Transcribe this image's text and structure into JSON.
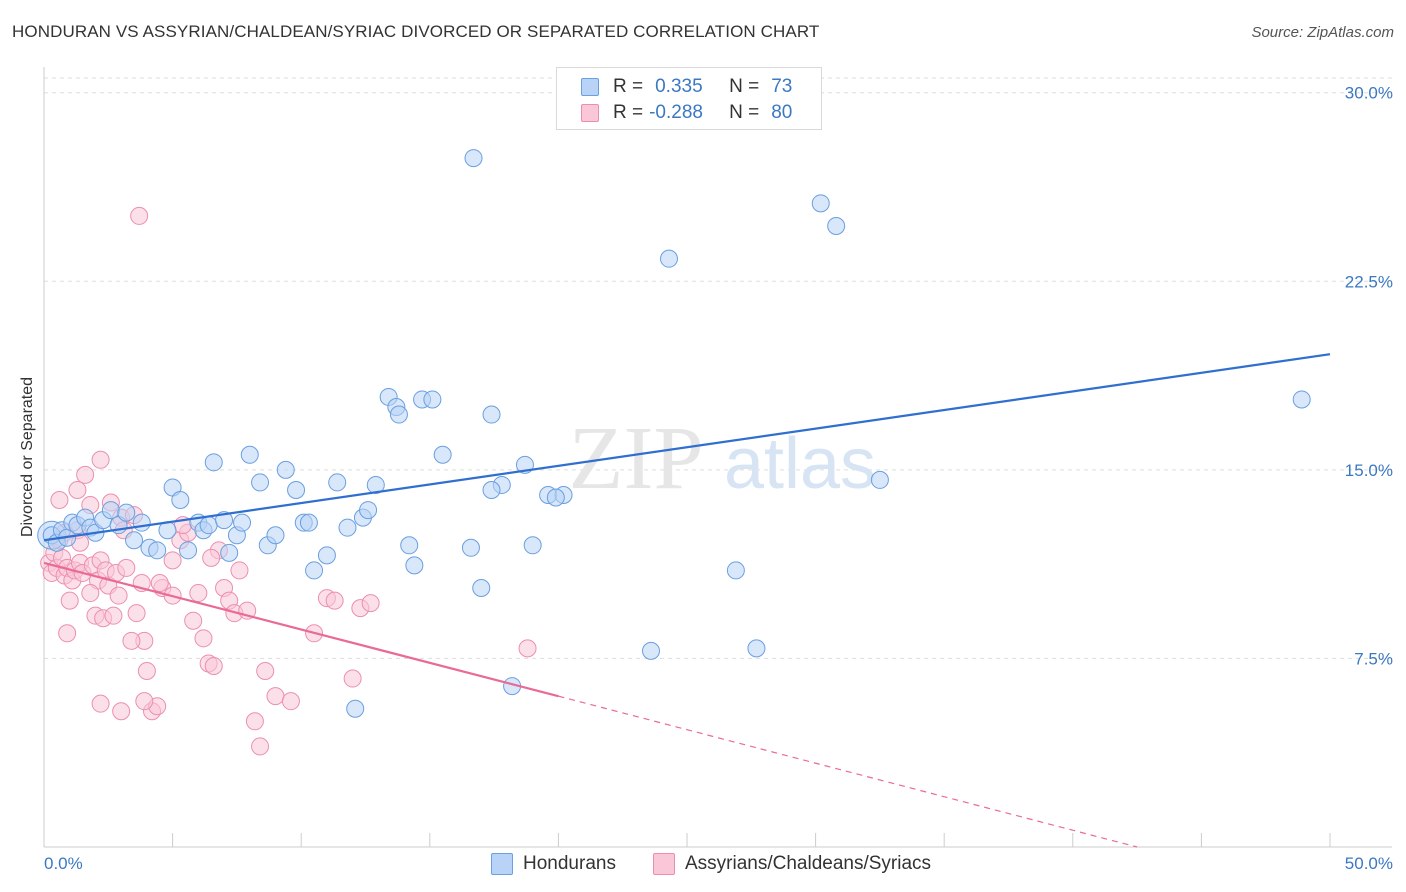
{
  "title": "HONDURAN VS ASSYRIAN/CHALDEAN/SYRIAC DIVORCED OR SEPARATED CORRELATION CHART",
  "source": "Source: ZipAtlas.com",
  "watermark": {
    "zip": "ZIP",
    "atlas": "atlas"
  },
  "colors": {
    "blue": "#3b78c2",
    "blue_point_fill": "#b8d3f5",
    "blue_line": "#2f6fcf",
    "pink_point_fill": "#f9c7d7",
    "pink_line": "#e96b94",
    "grid": "#dddddd"
  },
  "legend": {
    "rows": [
      {
        "r_label": "R =",
        "r_value": "0.335",
        "n_label": "N =",
        "n_value": "73"
      },
      {
        "r_label": "R =",
        "r_value": "-0.288",
        "n_label": "N =",
        "n_value": "80"
      }
    ]
  },
  "bottom_legend": {
    "items": [
      {
        "label": "Hondurans"
      },
      {
        "label": "Assyrians/Chaldeans/Syriacs"
      }
    ]
  },
  "chart_data": {
    "type": "scatter",
    "title": "HONDURAN VS ASSYRIAN/CHALDEAN/SYRIAC DIVORCED OR SEPARATED CORRELATION CHART",
    "xlabel": "",
    "ylabel": "Divorced or Separated",
    "xlim": [
      0,
      50
    ],
    "ylim": [
      0,
      31.5
    ],
    "x_tick_labels": [
      "0.0%",
      "50.0%"
    ],
    "y_ticks": [
      7.5,
      15.0,
      22.5,
      30.0
    ],
    "y_tick_labels": [
      "7.5%",
      "15.0%",
      "22.5%",
      "30.0%"
    ],
    "grid": true,
    "legend_position": "top-center",
    "series": [
      {
        "name": "Hondurans",
        "color": "#3b78c2",
        "r": 0.335,
        "n": 73,
        "trend": {
          "x": [
            0.0,
            50.0
          ],
          "y": [
            12.2,
            19.6
          ],
          "dashed_from": null
        },
        "points": [
          [
            0.3,
            12.4
          ],
          [
            0.5,
            12.1
          ],
          [
            0.7,
            12.6
          ],
          [
            0.9,
            12.3
          ],
          [
            1.1,
            12.9
          ],
          [
            1.3,
            12.8
          ],
          [
            1.6,
            13.1
          ],
          [
            1.8,
            12.7
          ],
          [
            2.0,
            12.5
          ],
          [
            2.3,
            13.0
          ],
          [
            2.6,
            13.4
          ],
          [
            2.9,
            12.8
          ],
          [
            3.2,
            13.3
          ],
          [
            3.5,
            12.2
          ],
          [
            3.8,
            12.9
          ],
          [
            4.1,
            11.9
          ],
          [
            4.4,
            11.8
          ],
          [
            4.8,
            12.6
          ],
          [
            5.0,
            14.3
          ],
          [
            5.3,
            13.8
          ],
          [
            5.6,
            11.8
          ],
          [
            6.0,
            12.9
          ],
          [
            6.2,
            12.6
          ],
          [
            6.4,
            12.8
          ],
          [
            6.6,
            15.3
          ],
          [
            7.0,
            13.0
          ],
          [
            7.2,
            11.7
          ],
          [
            7.5,
            12.4
          ],
          [
            7.7,
            12.9
          ],
          [
            8.0,
            15.6
          ],
          [
            8.4,
            14.5
          ],
          [
            8.7,
            12.0
          ],
          [
            9.0,
            12.4
          ],
          [
            9.4,
            15.0
          ],
          [
            9.8,
            14.2
          ],
          [
            10.1,
            12.9
          ],
          [
            10.3,
            12.9
          ],
          [
            10.5,
            11.0
          ],
          [
            11.0,
            11.6
          ],
          [
            11.4,
            14.5
          ],
          [
            11.8,
            12.7
          ],
          [
            12.4,
            13.1
          ],
          [
            12.6,
            13.4
          ],
          [
            12.9,
            14.4
          ],
          [
            13.4,
            17.9
          ],
          [
            13.7,
            17.5
          ],
          [
            14.2,
            12.0
          ],
          [
            14.4,
            11.2
          ],
          [
            14.7,
            17.8
          ],
          [
            15.1,
            17.8
          ],
          [
            15.5,
            15.6
          ],
          [
            16.6,
            11.9
          ],
          [
            17.0,
            10.3
          ],
          [
            17.4,
            17.2
          ],
          [
            17.8,
            14.4
          ],
          [
            17.4,
            14.2
          ],
          [
            16.7,
            27.4
          ],
          [
            18.7,
            15.2
          ],
          [
            19.0,
            12.0
          ],
          [
            19.6,
            14.0
          ],
          [
            18.2,
            6.4
          ],
          [
            12.1,
            5.5
          ],
          [
            20.2,
            14.0
          ],
          [
            23.6,
            7.8
          ],
          [
            24.3,
            23.4
          ],
          [
            26.9,
            11.0
          ],
          [
            27.7,
            7.9
          ],
          [
            30.2,
            25.6
          ],
          [
            30.8,
            24.7
          ],
          [
            32.5,
            14.6
          ],
          [
            48.9,
            17.8
          ],
          [
            13.8,
            17.2
          ],
          [
            19.9,
            13.9
          ]
        ]
      },
      {
        "name": "Assyrians/Chaldeans/Syriacs",
        "color": "#e96b94",
        "r": -0.288,
        "n": 80,
        "trend": {
          "x": [
            0.0,
            20.0,
            50.0
          ],
          "y": [
            11.3,
            6.0,
            -2.0
          ],
          "dashed_from": 20.0
        },
        "points": [
          [
            0.2,
            11.3
          ],
          [
            0.3,
            10.9
          ],
          [
            0.4,
            11.7
          ],
          [
            0.5,
            11.1
          ],
          [
            0.6,
            12.2
          ],
          [
            0.7,
            11.5
          ],
          [
            0.8,
            10.8
          ],
          [
            0.9,
            11.1
          ],
          [
            1.0,
            9.8
          ],
          [
            1.1,
            10.6
          ],
          [
            1.2,
            11.0
          ],
          [
            1.3,
            12.6
          ],
          [
            1.4,
            11.3
          ],
          [
            1.5,
            10.9
          ],
          [
            1.6,
            14.8
          ],
          [
            1.8,
            13.6
          ],
          [
            1.9,
            11.2
          ],
          [
            2.0,
            9.2
          ],
          [
            2.1,
            10.6
          ],
          [
            2.2,
            11.4
          ],
          [
            2.3,
            9.1
          ],
          [
            2.4,
            11.0
          ],
          [
            2.5,
            10.4
          ],
          [
            2.6,
            13.7
          ],
          [
            2.7,
            9.2
          ],
          [
            2.8,
            10.9
          ],
          [
            3.0,
            13.1
          ],
          [
            3.1,
            12.6
          ],
          [
            3.2,
            11.1
          ],
          [
            0.6,
            13.8
          ],
          [
            1.3,
            14.2
          ],
          [
            1.4,
            12.1
          ],
          [
            0.8,
            12.5
          ],
          [
            2.2,
            15.4
          ],
          [
            3.5,
            13.2
          ],
          [
            3.6,
            9.3
          ],
          [
            3.8,
            10.5
          ],
          [
            3.9,
            8.2
          ],
          [
            4.0,
            7.0
          ],
          [
            4.2,
            5.4
          ],
          [
            4.4,
            5.6
          ],
          [
            3.0,
            5.4
          ],
          [
            2.2,
            5.7
          ],
          [
            3.4,
            8.2
          ],
          [
            4.6,
            10.3
          ],
          [
            5.0,
            11.4
          ],
          [
            5.3,
            12.2
          ],
          [
            5.6,
            12.5
          ],
          [
            5.8,
            9.0
          ],
          [
            6.0,
            10.1
          ],
          [
            6.2,
            8.3
          ],
          [
            6.4,
            7.3
          ],
          [
            6.6,
            7.2
          ],
          [
            6.8,
            11.8
          ],
          [
            7.0,
            10.3
          ],
          [
            7.2,
            9.8
          ],
          [
            7.4,
            9.3
          ],
          [
            7.6,
            11.0
          ],
          [
            7.9,
            9.4
          ],
          [
            8.2,
            5.0
          ],
          [
            8.4,
            4.0
          ],
          [
            8.6,
            7.0
          ],
          [
            9.0,
            6.0
          ],
          [
            9.6,
            5.8
          ],
          [
            10.5,
            8.5
          ],
          [
            11.0,
            9.9
          ],
          [
            11.3,
            9.8
          ],
          [
            12.0,
            6.7
          ],
          [
            12.3,
            9.5
          ],
          [
            12.7,
            9.7
          ],
          [
            18.8,
            7.9
          ],
          [
            3.7,
            25.1
          ],
          [
            2.9,
            10.0
          ],
          [
            5.0,
            10.0
          ],
          [
            4.5,
            10.5
          ],
          [
            6.5,
            11.5
          ],
          [
            3.9,
            5.8
          ],
          [
            0.9,
            8.5
          ],
          [
            1.8,
            10.1
          ],
          [
            5.4,
            12.8
          ]
        ]
      }
    ]
  }
}
